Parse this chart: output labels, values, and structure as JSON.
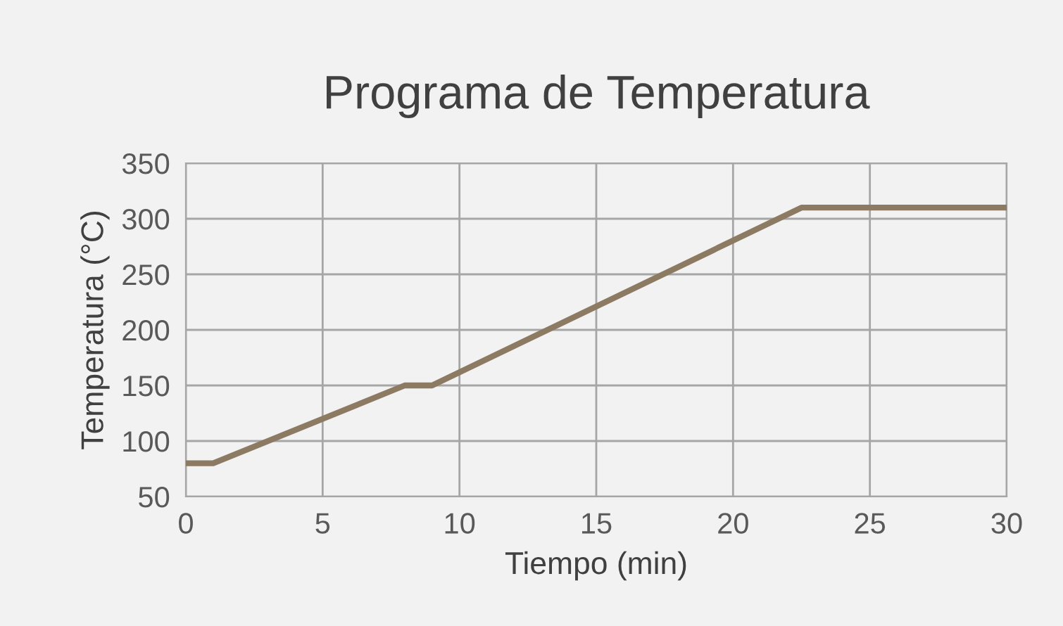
{
  "chart_data": {
    "type": "line",
    "title": "Programa de Temperatura",
    "xlabel": "Tiempo (min)",
    "ylabel": "Temperatura (°C)",
    "x": [
      0,
      1,
      8,
      9,
      22.5,
      30
    ],
    "series": [
      {
        "color": "#8c7b62",
        "values": [
          80,
          80,
          150,
          150,
          310,
          310
        ]
      }
    ],
    "xlim": [
      0,
      30
    ],
    "xticks": [
      0,
      5,
      10,
      15,
      20,
      25,
      30
    ],
    "ylim": [
      50,
      350
    ],
    "yticks": [
      50,
      100,
      150,
      200,
      250,
      300,
      350
    ],
    "grid": true,
    "legend": false,
    "marker": "none",
    "line_style": "solid"
  }
}
